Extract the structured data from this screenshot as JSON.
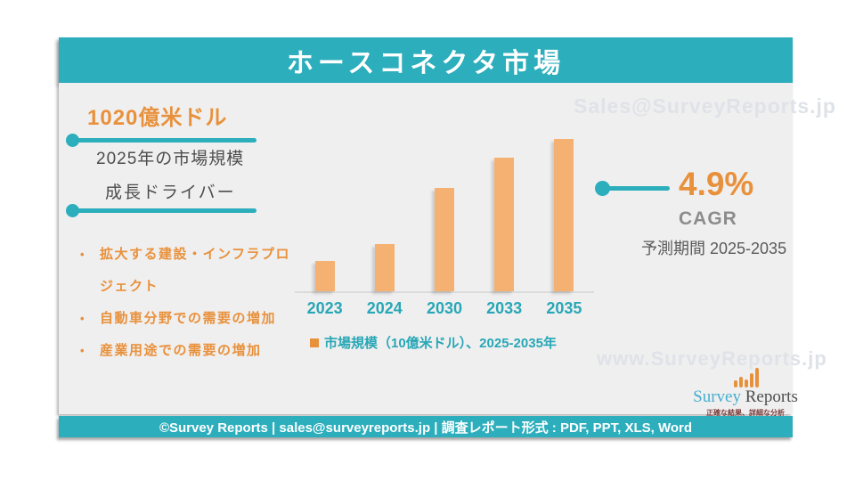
{
  "title": "ホースコネクタ市場",
  "colors": {
    "teal": "#2CAEBC",
    "orange_text": "#E8913C",
    "bar_orange": "#F5B171",
    "dark_text": "#4D4D4D",
    "watermark": "#DFE2E8"
  },
  "left_panel": {
    "market_size_value": "1020億米ドル",
    "market_size_label": "2025年の市場規模",
    "growth_drivers_label": "成長ドライバー",
    "drivers": [
      "拡大する建設・インフラプロジェクト",
      "自動車分野での需要の増加",
      "産業用途での需要の増加"
    ]
  },
  "right_panel": {
    "cagr_value": "4.9%",
    "cagr_label": "CAGR",
    "forecast_period": "予測期間 2025-2035"
  },
  "chart_data": {
    "type": "bar",
    "categories": [
      "2023",
      "2024",
      "2030",
      "2033",
      "2035"
    ],
    "values": [
      33,
      51,
      112,
      145,
      165
    ],
    "series_name": "市場規模（10億米ドル）、2025-2035年",
    "unit": "10億米ドル",
    "title": "",
    "xlabel": "",
    "ylabel": "",
    "ylim": [
      0,
      170
    ],
    "grid": false,
    "legend_position": "bottom",
    "bar_color": "#F5B171"
  },
  "legend_label": "市場規模（10億米ドル）、2025-2035年",
  "watermarks": {
    "top": "Sales@SurveyReports.jp",
    "bottom": "www.SurveyReports.jp"
  },
  "logo": {
    "name_part1": "Survey",
    "name_part2": " Reports",
    "tagline": "正確な結果、詳細な分析"
  },
  "footer": {
    "text": "©Survey Reports | sales@surveyreports.jp | 調査レポート形式 : PDF, PPT, XLS, Word"
  }
}
